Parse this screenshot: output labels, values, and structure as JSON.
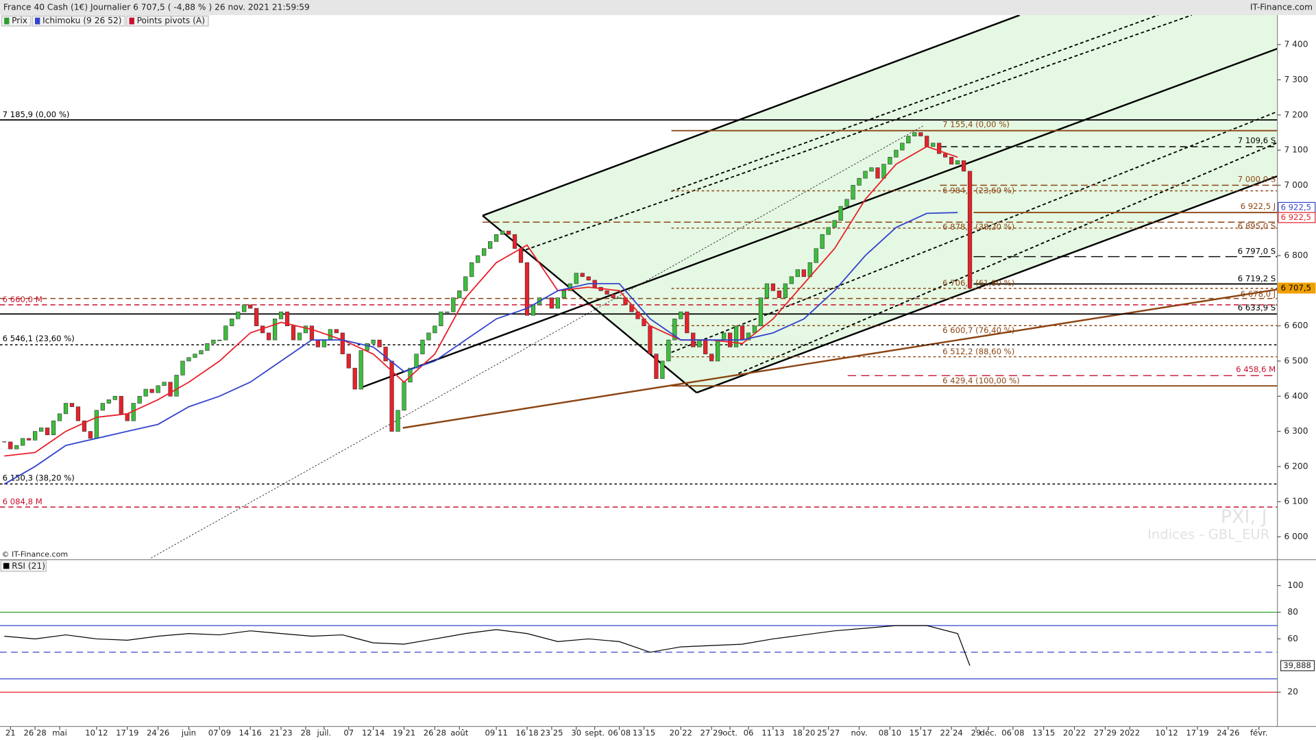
{
  "header": {
    "title": "France 40 Cash (1€) Journalier 6 707,5 ( -4,88 % ) 26 nov. 2021 21:59:59",
    "source": "IT-Finance.com"
  },
  "chart_data": [
    {
      "type": "candlestick",
      "copyright": "© IT-Finance.com",
      "watermark": [
        "PXI, J",
        "Indices - GBL_EUR"
      ],
      "legend": [
        {
          "name": "Prix",
          "color": "#2e9e2e"
        },
        {
          "name": "Ichimoku (9 26 52)",
          "color": "#3344cc"
        },
        {
          "name": "Points pivots (A)",
          "color": "#c8102e"
        }
      ],
      "x": [
        0,
        1,
        2,
        3,
        4,
        5,
        6,
        7,
        8,
        9,
        10,
        11,
        12,
        13,
        14,
        15,
        16,
        17,
        18,
        19,
        20,
        21,
        22,
        23,
        24,
        25,
        26,
        27,
        28,
        29,
        30,
        31,
        32,
        33,
        34,
        35,
        36,
        37,
        38,
        39,
        40,
        41,
        42,
        43,
        44,
        45,
        46,
        47,
        48,
        49,
        50,
        51,
        52,
        53,
        54,
        55,
        56,
        57,
        58,
        59,
        60,
        61,
        62,
        63,
        64,
        65,
        66,
        67,
        68,
        69,
        70,
        71,
        72,
        73,
        74,
        75,
        76,
        77,
        78,
        79,
        80,
        81,
        82,
        83,
        84,
        85,
        86,
        87,
        88,
        89,
        90,
        91,
        92,
        93,
        94,
        95,
        96,
        97,
        98,
        99,
        100,
        101,
        102,
        103,
        104,
        105,
        106,
        107,
        108,
        109,
        110,
        111,
        112,
        113,
        114,
        115,
        116,
        117,
        118,
        119,
        120,
        121,
        122,
        123,
        124,
        125,
        126,
        127,
        128,
        129,
        130,
        131,
        132,
        133,
        134,
        135,
        136,
        137,
        138,
        139,
        140,
        141,
        142,
        143,
        144,
        145,
        146,
        147,
        148,
        149,
        150,
        151,
        152,
        153,
        154,
        155,
        156,
        157
      ],
      "series": [
        {
          "up_color": "#3cbf3c",
          "down_color": "#e8212b",
          "values": [
            6270,
            6250,
            6260,
            6280,
            6275,
            6300,
            6310,
            6290,
            6330,
            6350,
            6380,
            6370,
            6330,
            6300,
            6280,
            6360,
            6380,
            6390,
            6400,
            6350,
            6330,
            6380,
            6400,
            6420,
            6410,
            6430,
            6440,
            6400,
            6460,
            6500,
            6510,
            6520,
            6530,
            6550,
            6560,
            6560,
            6600,
            6620,
            6640,
            6660,
            6650,
            6600,
            6580,
            6560,
            6620,
            6640,
            6600,
            6560,
            6580,
            6600,
            6560,
            6540,
            6560,
            6590,
            6580,
            6520,
            6480,
            6420,
            6530,
            6550,
            6560,
            6540,
            6500,
            6300,
            6360,
            6440,
            6480,
            6520,
            6560,
            6580,
            6600,
            6640,
            6640,
            6680,
            6700,
            6740,
            6780,
            6800,
            6820,
            6840,
            6860,
            6870,
            6860,
            6820,
            6780,
            6630,
            6660,
            6680,
            6680,
            6650,
            6680,
            6700,
            6720,
            6750,
            6740,
            6730,
            6710,
            6700,
            6690,
            6680,
            6680,
            6660,
            6640,
            6620,
            6600,
            6520,
            6450,
            6500,
            6560,
            6620,
            6640,
            6580,
            6540,
            6560,
            6520,
            6500,
            6560,
            6580,
            6540,
            6600,
            6560,
            6580,
            6600,
            6680,
            6720,
            6700,
            6680,
            6720,
            6740,
            6760,
            6740,
            6780,
            6820,
            6860,
            6880,
            6900,
            6940,
            6960,
            7000,
            7020,
            7040,
            7050,
            7020,
            7060,
            7080,
            7100,
            7120,
            7140,
            7150,
            7140,
            7110,
            7120,
            7090,
            7080,
            7060,
            7070,
            7040,
            6707.5
          ]
        }
      ],
      "ichimoku": {
        "tenkan": {
          "color": "#e8212b",
          "x": [
            0,
            5,
            10,
            15,
            20,
            25,
            30,
            35,
            40,
            45,
            50,
            55,
            60,
            65,
            70,
            75,
            80,
            85,
            90,
            95,
            100,
            105,
            110,
            115,
            120,
            125,
            130,
            135,
            140,
            145,
            150,
            155
          ],
          "values": [
            6230,
            6240,
            6300,
            6340,
            6350,
            6390,
            6440,
            6500,
            6580,
            6610,
            6590,
            6560,
            6520,
            6440,
            6520,
            6680,
            6780,
            6830,
            6700,
            6710,
            6700,
            6600,
            6560,
            6560,
            6550,
            6620,
            6720,
            6820,
            6960,
            7060,
            7110,
            7080
          ]
        },
        "kijun": {
          "color": "#3344cc",
          "x": [
            0,
            5,
            10,
            15,
            20,
            25,
            30,
            35,
            40,
            45,
            50,
            55,
            60,
            65,
            70,
            75,
            80,
            85,
            90,
            95,
            100,
            105,
            110,
            115,
            120,
            125,
            130,
            135,
            140,
            145,
            150,
            155
          ],
          "values": [
            6150,
            6200,
            6260,
            6280,
            6300,
            6320,
            6370,
            6400,
            6440,
            6500,
            6560,
            6560,
            6540,
            6470,
            6500,
            6560,
            6620,
            6650,
            6700,
            6720,
            6720,
            6620,
            6560,
            6560,
            6560,
            6580,
            6620,
            6700,
            6800,
            6880,
            6920,
            6922.5
          ]
        }
      },
      "levels": [
        {
          "value": 7185.9,
          "label": "7 185,9 (0,00 %)",
          "color": "#000000",
          "dash": "none"
        },
        {
          "value": 7155.4,
          "label": "7 155,4 (0,00 %)",
          "color": "#8b4513",
          "dash": "none"
        },
        {
          "value": 7109.6,
          "label": "7 109,6 S",
          "color": "#000000",
          "dash": "8,5"
        },
        {
          "value": 7000,
          "label": "7 000,0 S",
          "color": "#8b4513",
          "dash": "8,4"
        },
        {
          "value": 6984.1,
          "label": "6 984,1 (23,60 %)",
          "color": "#8b4513",
          "dash": "3,3"
        },
        {
          "value": 6922.5,
          "label": "6 922,5 J",
          "color": "#8b4513",
          "dash": "none"
        },
        {
          "value": 6895,
          "label": "6 895,0 S",
          "color": "#8b4513",
          "dash": "8,4"
        },
        {
          "value": 6878.1,
          "label": "6 878,1 (38,20 %)",
          "color": "#8b4513",
          "dash": "3,3"
        },
        {
          "value": 6797,
          "label": "6 797,0 S",
          "color": "#000000",
          "dash": "14,6"
        },
        {
          "value": 6719.2,
          "label": "6 719,2 S",
          "color": "#000000",
          "dash": "none"
        },
        {
          "value": 6706.7,
          "label": "6 706,7 (61,80 %)",
          "color": "#8b4513",
          "dash": "3,3"
        },
        {
          "value": 6678,
          "label": "6 678,0 J",
          "color": "#8b4513",
          "dash": "6,4"
        },
        {
          "value": 6660,
          "label": "6 660,0 M",
          "color": "#c8102e",
          "dash": "6,4"
        },
        {
          "value": 6633.9,
          "label": "6 633,9 S",
          "color": "#000000",
          "dash": "none"
        },
        {
          "value": 6600.7,
          "label": "6 600,7 (76,40 %)",
          "color": "#8b4513",
          "dash": "3,3"
        },
        {
          "value": 6546.1,
          "label": "6 546,1 (23,60 %)",
          "color": "#000000",
          "dash": "3,3"
        },
        {
          "value": 6512.2,
          "label": "6 512,2 (88,60 %)",
          "color": "#8b4513",
          "dash": "3,3"
        },
        {
          "value": 6458.6,
          "label": "6 458,6 M",
          "color": "#c8102e",
          "dash": "10,6"
        },
        {
          "value": 6429.4,
          "label": "6 429,4 (100,00 %)",
          "color": "#8b4513",
          "dash": "none"
        },
        {
          "value": 6150.3,
          "label": "6 150,3 (38,20 %)",
          "color": "#000000",
          "dash": "3,3"
        },
        {
          "value": 6084.8,
          "label": "6 084,8 M",
          "color": "#c8102e",
          "dash": "6,4"
        }
      ],
      "price_badges": [
        {
          "value": 6922.5,
          "label": "6 922,5",
          "color": "#3344cc"
        },
        {
          "value": 6922.5,
          "label": "6 922,5",
          "color": "#e8212b"
        },
        {
          "value": 6707.5,
          "label": "6 707,5",
          "color": "#f0a000"
        }
      ],
      "xlim": [
        -0.7,
        207
      ],
      "ylim": [
        5940,
        7484
      ],
      "yticks": [
        {
          "value": 6000,
          "label": "6 000"
        },
        {
          "value": 6100,
          "label": "6 100"
        },
        {
          "value": 6200,
          "label": "6 200"
        },
        {
          "value": 6300,
          "label": "6 300"
        },
        {
          "value": 6400,
          "label": "6 400"
        },
        {
          "value": 6500,
          "label": "6 500"
        },
        {
          "value": 6600,
          "label": "6 600"
        },
        {
          "value": 6700,
          "label": "6 700"
        },
        {
          "value": 6800,
          "label": "6 800"
        },
        {
          "value": 6900,
          "label": "6 900"
        },
        {
          "value": 7000,
          "label": "7 000"
        },
        {
          "value": 7100,
          "label": "7 100"
        },
        {
          "value": 7200,
          "label": "7 200"
        },
        {
          "value": 7300,
          "label": "7 300"
        },
        {
          "value": 7400,
          "label": "7 400"
        }
      ],
      "xticks": [
        {
          "value": 1,
          "label": "21"
        },
        {
          "value": 5,
          "label": "26 28"
        },
        {
          "value": 9,
          "label": "mai"
        },
        {
          "value": 15,
          "label": "10 12"
        },
        {
          "value": 20,
          "label": "17 19"
        },
        {
          "value": 25,
          "label": "24 26"
        },
        {
          "value": 30,
          "label": "juin"
        },
        {
          "value": 35,
          "label": "07 09"
        },
        {
          "value": 40,
          "label": "14 16"
        },
        {
          "value": 45,
          "label": "21 23"
        },
        {
          "value": 49,
          "label": "28"
        },
        {
          "value": 52,
          "label": "juil."
        },
        {
          "value": 56,
          "label": "07"
        },
        {
          "value": 60,
          "label": "12 14"
        },
        {
          "value": 65,
          "label": "19 21"
        },
        {
          "value": 70,
          "label": "26 28"
        },
        {
          "value": 74,
          "label": "août"
        },
        {
          "value": 80,
          "label": "09 11"
        },
        {
          "value": 85,
          "label": "16 18"
        },
        {
          "value": 89,
          "label": "23 25"
        },
        {
          "value": 93,
          "label": "30"
        },
        {
          "value": 96,
          "label": "sept."
        },
        {
          "value": 100,
          "label": "06 08"
        },
        {
          "value": 104,
          "label": "13 15"
        },
        {
          "value": 110,
          "label": "20 22"
        },
        {
          "value": 115,
          "label": "27 29"
        },
        {
          "value": 118,
          "label": "oct."
        },
        {
          "value": 121,
          "label": "06"
        },
        {
          "value": 125,
          "label": "11 13"
        },
        {
          "value": 130,
          "label": "18 20"
        },
        {
          "value": 134,
          "label": "25 27"
        },
        {
          "value": 139,
          "label": "nov."
        },
        {
          "value": 144,
          "label": "08 10"
        },
        {
          "value": 149,
          "label": "15 17"
        },
        {
          "value": 154,
          "label": "22 24"
        },
        {
          "value": 158,
          "label": "29"
        },
        {
          "value": 160,
          "label": "déc."
        },
        {
          "value": 164,
          "label": "06 08"
        },
        {
          "value": 169,
          "label": "13 15"
        },
        {
          "value": 174,
          "label": "20 22"
        },
        {
          "value": 179,
          "label": "27 29"
        },
        {
          "value": 183,
          "label": "2022"
        },
        {
          "value": 189,
          "label": "10 12"
        },
        {
          "value": 194,
          "label": "17 19"
        },
        {
          "value": 199,
          "label": "24 26"
        },
        {
          "value": 204,
          "label": "févr."
        }
      ]
    },
    {
      "type": "line",
      "label": "RSI (21)",
      "color": "#000000",
      "x": [
        0,
        5,
        10,
        15,
        20,
        25,
        30,
        35,
        40,
        45,
        50,
        55,
        60,
        65,
        70,
        75,
        80,
        85,
        90,
        95,
        100,
        105,
        110,
        115,
        120,
        125,
        130,
        135,
        140,
        145,
        150,
        155,
        157
      ],
      "values": [
        62,
        60,
        63,
        60,
        59,
        62,
        64,
        63,
        66,
        64,
        62,
        63,
        57,
        56,
        60,
        64,
        67,
        64,
        58,
        60,
        58,
        50,
        54,
        55,
        56,
        60,
        63,
        66,
        68,
        70,
        70,
        64,
        39.888
      ],
      "badge": {
        "value": 39.888,
        "label": "39,888"
      },
      "levels": [
        {
          "value": 80,
          "color": "#2ca02c",
          "dash": "none"
        },
        {
          "value": 70,
          "color": "#3344cc",
          "dash": "none"
        },
        {
          "value": 50,
          "color": "#3344cc",
          "dash": "8,5"
        },
        {
          "value": 30,
          "color": "#3344cc",
          "dash": "none"
        },
        {
          "value": 20,
          "color": "#e8212b",
          "dash": "none"
        }
      ],
      "ylim": [
        -5.8,
        109.4
      ],
      "yticks": [
        20,
        60,
        80,
        100
      ]
    }
  ]
}
